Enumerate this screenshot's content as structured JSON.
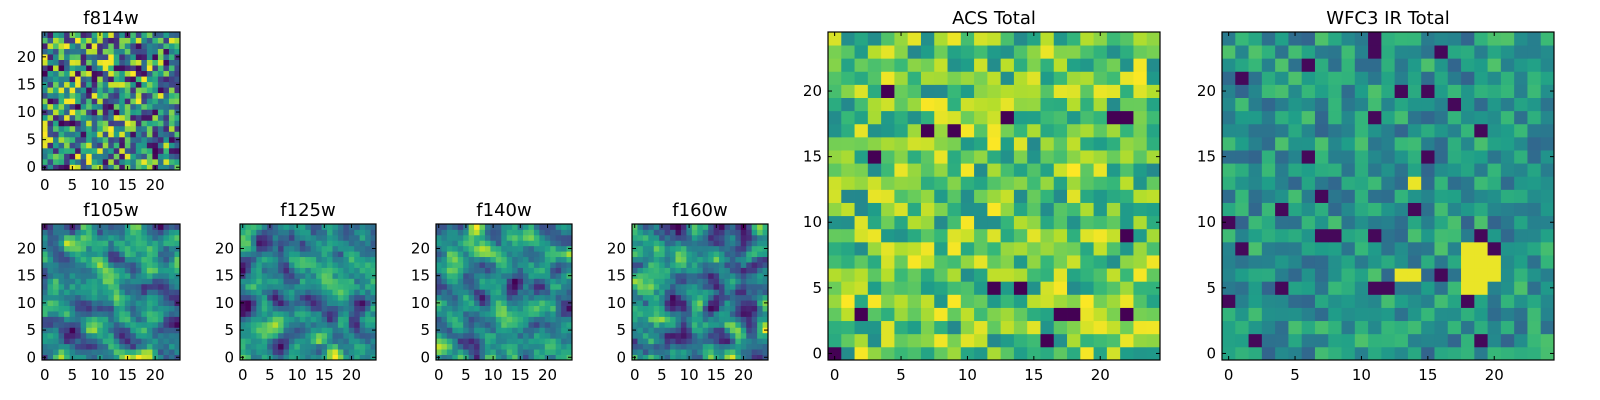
{
  "figure": {
    "description_colormap": "viridis",
    "colors": {
      "viridis_stops": [
        "#440154",
        "#482878",
        "#3e4989",
        "#31688e",
        "#26828e",
        "#1f9e89",
        "#35b779",
        "#6ece58",
        "#b5de2b",
        "#fde725"
      ],
      "axis": "#000000",
      "background": "#ffffff"
    }
  },
  "chart_data": [
    {
      "id": "f814w",
      "type": "heatmap",
      "title": "f814w",
      "grid_size": [
        25,
        25
      ],
      "xlim": [
        -0.5,
        24.5
      ],
      "ylim": [
        -0.5,
        24.5
      ],
      "xticks": [
        0,
        5,
        10,
        15,
        20
      ],
      "yticks": [
        0,
        5,
        10,
        15,
        20
      ],
      "xtick_labels": [
        "0",
        "5",
        "10",
        "15",
        "20"
      ],
      "ytick_labels": [
        "0",
        "5",
        "10",
        "15",
        "20"
      ],
      "pattern": "uniform-noise",
      "seed": 814
    },
    {
      "id": "f105w",
      "type": "heatmap",
      "title": "f105w",
      "grid_size": [
        25,
        25
      ],
      "xlim": [
        -0.5,
        24.5
      ],
      "ylim": [
        -0.5,
        24.5
      ],
      "xticks": [
        0,
        5,
        10,
        15,
        20
      ],
      "yticks": [
        0,
        5,
        10,
        15,
        20
      ],
      "xtick_labels": [
        "0",
        "5",
        "10",
        "15",
        "20"
      ],
      "ytick_labels": [
        "0",
        "5",
        "10",
        "15",
        "20"
      ],
      "pattern": "smoothed-noise",
      "seed": 105
    },
    {
      "id": "f125w",
      "type": "heatmap",
      "title": "f125w",
      "grid_size": [
        25,
        25
      ],
      "xlim": [
        -0.5,
        24.5
      ],
      "ylim": [
        -0.5,
        24.5
      ],
      "xticks": [
        0,
        5,
        10,
        15,
        20
      ],
      "yticks": [
        0,
        5,
        10,
        15,
        20
      ],
      "xtick_labels": [
        "0",
        "5",
        "10",
        "15",
        "20"
      ],
      "ytick_labels": [
        "0",
        "5",
        "10",
        "15",
        "20"
      ],
      "pattern": "smoothed-noise",
      "seed": 125
    },
    {
      "id": "f140w",
      "type": "heatmap",
      "title": "f140w",
      "grid_size": [
        25,
        25
      ],
      "xlim": [
        -0.5,
        24.5
      ],
      "ylim": [
        -0.5,
        24.5
      ],
      "xticks": [
        0,
        5,
        10,
        15,
        20
      ],
      "yticks": [
        0,
        5,
        10,
        15,
        20
      ],
      "xtick_labels": [
        "0",
        "5",
        "10",
        "15",
        "20"
      ],
      "ytick_labels": [
        "0",
        "5",
        "10",
        "15",
        "20"
      ],
      "pattern": "smoothed-noise",
      "seed": 140
    },
    {
      "id": "f160w",
      "type": "heatmap",
      "title": "f160w",
      "grid_size": [
        25,
        25
      ],
      "xlim": [
        -0.5,
        24.5
      ],
      "ylim": [
        -0.5,
        24.5
      ],
      "xticks": [
        0,
        5,
        10,
        15,
        20
      ],
      "yticks": [
        0,
        5,
        10,
        15,
        20
      ],
      "xtick_labels": [
        "0",
        "5",
        "10",
        "15",
        "20"
      ],
      "ytick_labels": [
        "0",
        "5",
        "10",
        "15",
        "20"
      ],
      "pattern": "smoothed-noise",
      "seed": 160
    },
    {
      "id": "acs-total",
      "type": "heatmap",
      "title": "ACS Total",
      "grid_size": [
        25,
        25
      ],
      "xlim": [
        -0.5,
        24.5
      ],
      "ylim": [
        -0.5,
        24.5
      ],
      "xticks": [
        0,
        5,
        10,
        15,
        20
      ],
      "yticks": [
        0,
        5,
        10,
        15,
        20
      ],
      "xtick_labels": [
        "0",
        "5",
        "10",
        "15",
        "20"
      ],
      "ytick_labels": [
        "0",
        "5",
        "10",
        "15",
        "20"
      ],
      "pattern": "bright-noise",
      "seed": 7
    },
    {
      "id": "wfc3-ir-total",
      "type": "heatmap",
      "title": "WFC3 IR Total",
      "grid_size": [
        25,
        25
      ],
      "xlim": [
        -0.5,
        24.5
      ],
      "ylim": [
        -0.5,
        24.5
      ],
      "xticks": [
        0,
        5,
        10,
        15,
        20
      ],
      "yticks": [
        0,
        5,
        10,
        15,
        20
      ],
      "xtick_labels": [
        "0",
        "5",
        "10",
        "15",
        "20"
      ],
      "ytick_labels": [
        "0",
        "5",
        "10",
        "15",
        "20"
      ],
      "pattern": "mid-noise-with-bright-blob",
      "bright_cells": [
        [
          13,
          6
        ],
        [
          14,
          6
        ],
        [
          18,
          6
        ],
        [
          19,
          6
        ],
        [
          20,
          6
        ],
        [
          18,
          7
        ],
        [
          19,
          7
        ],
        [
          20,
          7
        ],
        [
          18,
          8
        ],
        [
          19,
          8
        ],
        [
          18,
          5
        ],
        [
          19,
          5
        ],
        [
          14,
          13
        ]
      ],
      "seed": 31
    }
  ]
}
